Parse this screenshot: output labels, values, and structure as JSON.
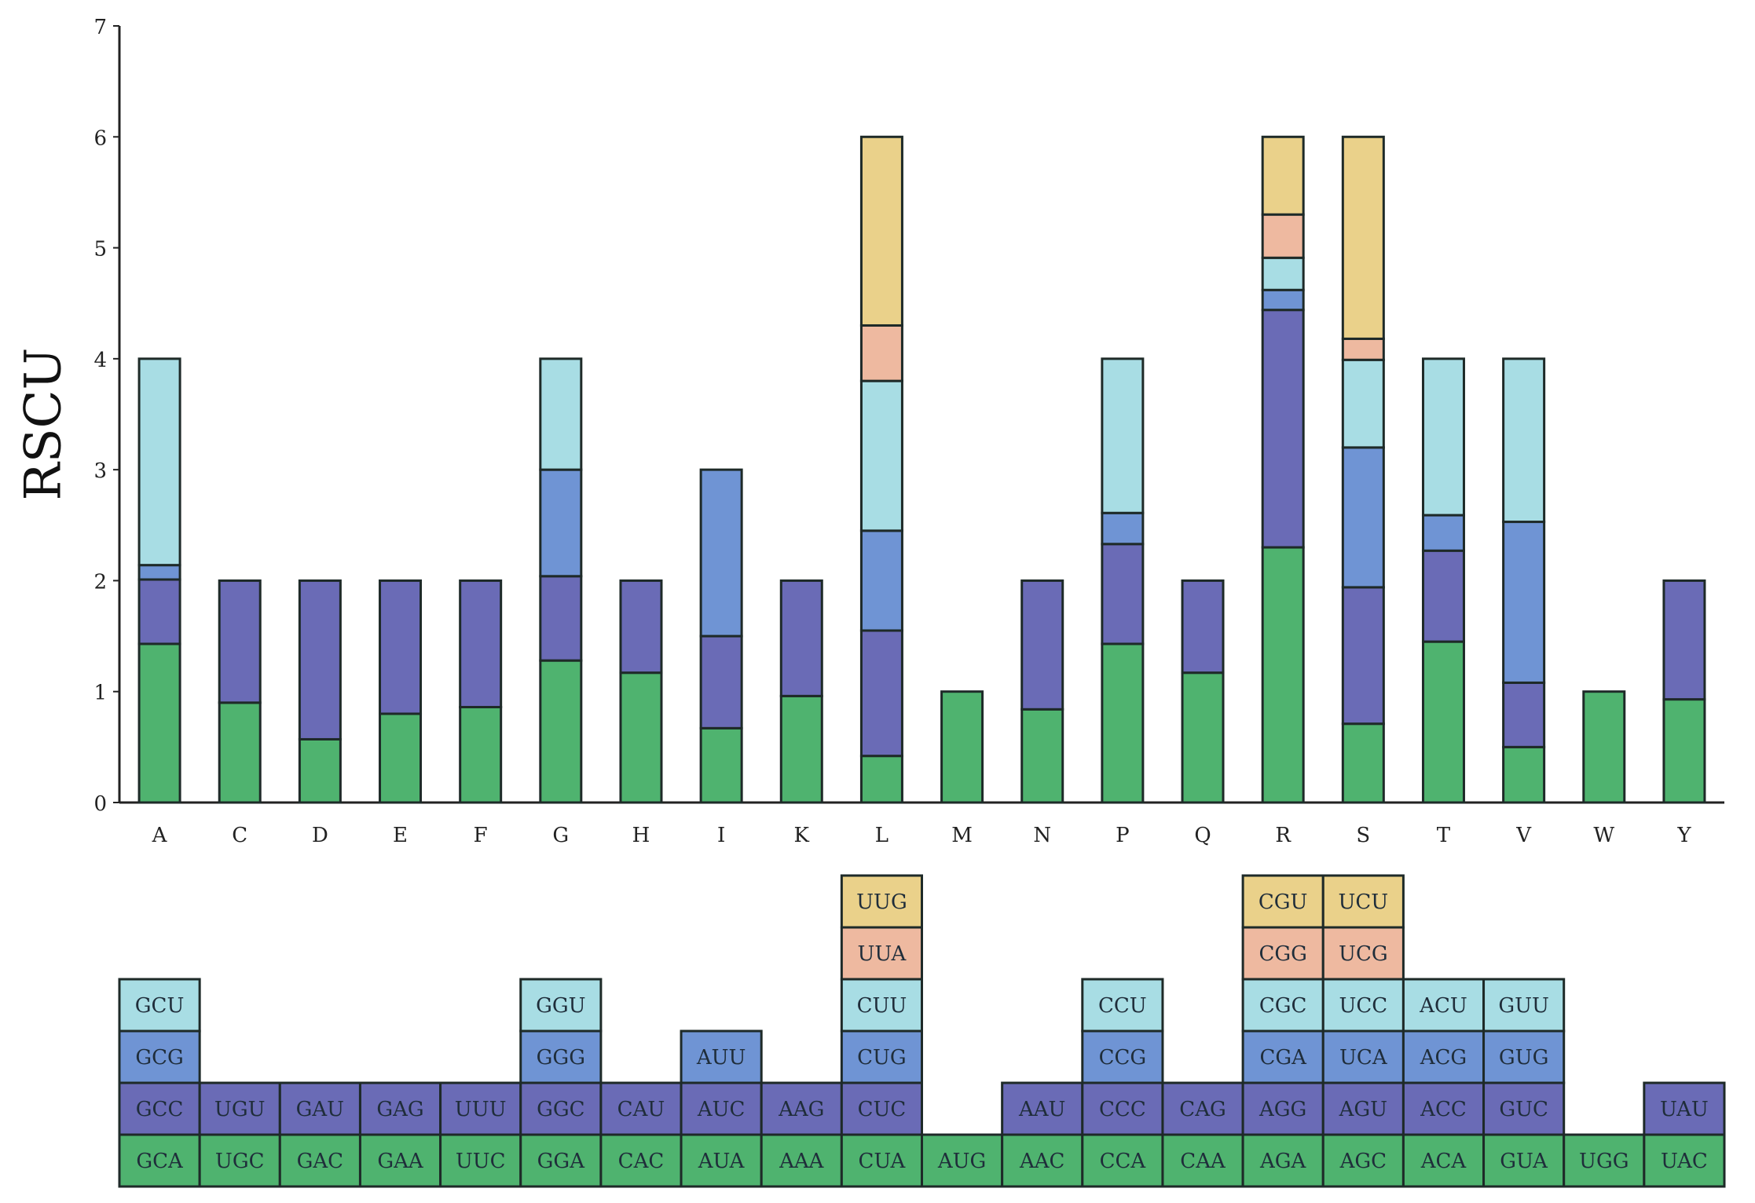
{
  "chart_data": {
    "type": "bar",
    "stacked": true,
    "ylabel": "RSCU",
    "ylim": [
      0,
      7
    ],
    "yticks": [
      "0",
      "1",
      "2",
      "3",
      "4",
      "5",
      "6",
      "7"
    ],
    "grid": false,
    "legend": "codon table below chart",
    "layer_colors": [
      "#4fb36f",
      "#6a6bb6",
      "#6f94d4",
      "#a8dde4",
      "#eeb9a0",
      "#ead18a"
    ],
    "categories": [
      "A",
      "C",
      "D",
      "E",
      "F",
      "G",
      "H",
      "I",
      "K",
      "L",
      "M",
      "N",
      "P",
      "Q",
      "R",
      "S",
      "T",
      "V",
      "W",
      "Y"
    ],
    "bars": [
      {
        "aa": "A",
        "layers": [
          {
            "codon": "GCA",
            "value": 1.43
          },
          {
            "codon": "GCC",
            "value": 0.58
          },
          {
            "codon": "GCG",
            "value": 0.13
          },
          {
            "codon": "GCU",
            "value": 1.86
          }
        ]
      },
      {
        "aa": "C",
        "layers": [
          {
            "codon": "UGC",
            "value": 0.9
          },
          {
            "codon": "UGU",
            "value": 1.1
          }
        ]
      },
      {
        "aa": "D",
        "layers": [
          {
            "codon": "GAC",
            "value": 0.57
          },
          {
            "codon": "GAU",
            "value": 1.43
          }
        ]
      },
      {
        "aa": "E",
        "layers": [
          {
            "codon": "GAA",
            "value": 0.8
          },
          {
            "codon": "GAG",
            "value": 1.2
          }
        ]
      },
      {
        "aa": "F",
        "layers": [
          {
            "codon": "UUC",
            "value": 0.86
          },
          {
            "codon": "UUU",
            "value": 1.14
          }
        ]
      },
      {
        "aa": "G",
        "layers": [
          {
            "codon": "GGA",
            "value": 1.28
          },
          {
            "codon": "GGC",
            "value": 0.76
          },
          {
            "codon": "GGG",
            "value": 0.96
          },
          {
            "codon": "GGU",
            "value": 1.0
          }
        ]
      },
      {
        "aa": "H",
        "layers": [
          {
            "codon": "CAC",
            "value": 1.17
          },
          {
            "codon": "CAU",
            "value": 0.83
          }
        ]
      },
      {
        "aa": "I",
        "layers": [
          {
            "codon": "AUA",
            "value": 0.67
          },
          {
            "codon": "AUC",
            "value": 0.83
          },
          {
            "codon": "AUU",
            "value": 1.5
          }
        ]
      },
      {
        "aa": "K",
        "layers": [
          {
            "codon": "AAA",
            "value": 0.96
          },
          {
            "codon": "AAG",
            "value": 1.04
          }
        ]
      },
      {
        "aa": "L",
        "layers": [
          {
            "codon": "CUA",
            "value": 0.42
          },
          {
            "codon": "CUC",
            "value": 1.13
          },
          {
            "codon": "CUG",
            "value": 0.9
          },
          {
            "codon": "CUU",
            "value": 1.35
          },
          {
            "codon": "UUA",
            "value": 0.5
          },
          {
            "codon": "UUG",
            "value": 1.7
          }
        ]
      },
      {
        "aa": "M",
        "layers": [
          {
            "codon": "AUG",
            "value": 1.0
          }
        ]
      },
      {
        "aa": "N",
        "layers": [
          {
            "codon": "AAC",
            "value": 0.84
          },
          {
            "codon": "AAU",
            "value": 1.16
          }
        ]
      },
      {
        "aa": "P",
        "layers": [
          {
            "codon": "CCA",
            "value": 1.43
          },
          {
            "codon": "CCC",
            "value": 0.9
          },
          {
            "codon": "CCG",
            "value": 0.28
          },
          {
            "codon": "CCU",
            "value": 1.39
          }
        ]
      },
      {
        "aa": "Q",
        "layers": [
          {
            "codon": "CAA",
            "value": 1.17
          },
          {
            "codon": "CAG",
            "value": 0.83
          }
        ]
      },
      {
        "aa": "R",
        "layers": [
          {
            "codon": "AGA",
            "value": 2.3
          },
          {
            "codon": "AGG",
            "value": 2.14
          },
          {
            "codon": "CGA",
            "value": 0.18
          },
          {
            "codon": "CGC",
            "value": 0.29
          },
          {
            "codon": "CGG",
            "value": 0.39
          },
          {
            "codon": "CGU",
            "value": 0.7
          }
        ]
      },
      {
        "aa": "S",
        "layers": [
          {
            "codon": "AGC",
            "value": 0.71
          },
          {
            "codon": "AGU",
            "value": 1.23
          },
          {
            "codon": "UCA",
            "value": 1.26
          },
          {
            "codon": "UCC",
            "value": 0.79
          },
          {
            "codon": "UCG",
            "value": 0.19
          },
          {
            "codon": "UCU",
            "value": 1.82
          }
        ]
      },
      {
        "aa": "T",
        "layers": [
          {
            "codon": "ACA",
            "value": 1.45
          },
          {
            "codon": "ACC",
            "value": 0.82
          },
          {
            "codon": "ACG",
            "value": 0.32
          },
          {
            "codon": "ACU",
            "value": 1.41
          }
        ]
      },
      {
        "aa": "V",
        "layers": [
          {
            "codon": "GUA",
            "value": 0.5
          },
          {
            "codon": "GUC",
            "value": 0.58
          },
          {
            "codon": "GUG",
            "value": 1.45
          },
          {
            "codon": "GUU",
            "value": 1.47
          }
        ]
      },
      {
        "aa": "W",
        "layers": [
          {
            "codon": "UGG",
            "value": 1.0
          }
        ]
      },
      {
        "aa": "Y",
        "layers": [
          {
            "codon": "UAC",
            "value": 0.93
          },
          {
            "codon": "UAU",
            "value": 1.07
          }
        ]
      }
    ]
  }
}
